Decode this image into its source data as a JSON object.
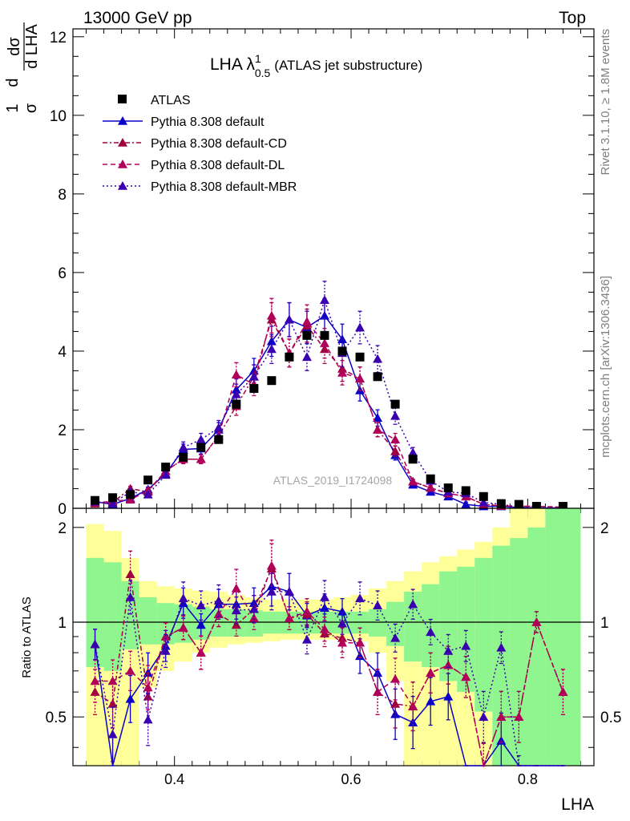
{
  "header": {
    "left": "13000 GeV pp",
    "right": "Top"
  },
  "plot_title": {
    "main": "LHA λ",
    "sup": "1",
    "sub": "0.5",
    "suffix": "(ATLAS jet substructure)"
  },
  "side_labels": {
    "rivet": "Rivet 3.1.10, ≥ 1.8M events",
    "mcplots": "mcplots.cern.ch [arXiv:1306.3436]"
  },
  "analysis_id": "ATLAS_2019_I1724098",
  "y_axis_top_label": {
    "frac_num": "1",
    "frac_den": "σ",
    "d_num": "d",
    "d_den": "d LHA",
    "dsig": "dσ"
  },
  "ratio_ylabel": "Ratio to ATLAS",
  "xlabel": "LHA",
  "legend": [
    {
      "label": "ATLAS",
      "color": "#000000",
      "marker": "square",
      "dash": ""
    },
    {
      "label": "Pythia 8.308 default",
      "color": "#0a00c8",
      "marker": "triangle",
      "dash": ""
    },
    {
      "label": "Pythia 8.308 default-CD",
      "color": "#a00040",
      "marker": "triangle",
      "dash": "6,3,2,3"
    },
    {
      "label": "Pythia 8.308 default-DL",
      "color": "#b0005a",
      "marker": "triangle",
      "dash": "6,4"
    },
    {
      "label": "Pythia 8.308 default-MBR",
      "color": "#3a00b0",
      "marker": "triangle",
      "dash": "2,3"
    }
  ],
  "chart_data": {
    "type": "scatter",
    "x": [
      0.31,
      0.33,
      0.35,
      0.37,
      0.39,
      0.41,
      0.43,
      0.45,
      0.47,
      0.49,
      0.51,
      0.53,
      0.55,
      0.57,
      0.59,
      0.61,
      0.63,
      0.65,
      0.67,
      0.69,
      0.71,
      0.73,
      0.75,
      0.77,
      0.79,
      0.81,
      0.84
    ],
    "bin_edges": [
      0.3,
      0.32,
      0.34,
      0.36,
      0.38,
      0.4,
      0.42,
      0.44,
      0.46,
      0.48,
      0.5,
      0.52,
      0.54,
      0.56,
      0.58,
      0.6,
      0.62,
      0.64,
      0.66,
      0.68,
      0.7,
      0.72,
      0.74,
      0.76,
      0.78,
      0.8,
      0.82,
      0.86
    ],
    "xlim": [
      0.285,
      0.875
    ],
    "xticks": [
      0.4,
      0.6,
      0.8
    ],
    "xtick_labels": [
      "0.4",
      "0.6",
      "0.8"
    ],
    "top_ylim": [
      0,
      12.2
    ],
    "top_yticks": [
      0,
      2,
      4,
      6,
      8,
      10,
      12
    ],
    "top_ytick_labels": [
      "0",
      "2",
      "4",
      "6",
      "8",
      "10",
      "12"
    ],
    "ratio_ylim": [
      0.35,
      2.3
    ],
    "ratio_yticks": [
      0.5,
      1,
      2
    ],
    "ratio_ytick_labels": [
      "0.5",
      "1",
      "2"
    ],
    "series": [
      {
        "name": "ATLAS",
        "values": [
          0.2,
          0.27,
          0.35,
          0.72,
          1.05,
          1.3,
          1.55,
          1.75,
          2.65,
          3.05,
          3.25,
          3.85,
          4.4,
          4.4,
          4.0,
          3.85,
          3.35,
          2.65,
          1.25,
          0.75,
          0.52,
          0.45,
          0.3,
          0.12,
          0.1,
          0.05,
          0.05
        ]
      },
      {
        "name": "Pythia 8.308 default",
        "values": [
          0.17,
          0.1,
          0.25,
          0.48,
          0.88,
          1.5,
          1.52,
          2.0,
          3.02,
          3.5,
          4.25,
          4.8,
          4.6,
          4.9,
          4.3,
          3.0,
          2.3,
          1.35,
          0.6,
          0.42,
          0.3,
          0.1,
          0.05,
          0.05,
          0.02,
          0.01,
          0.01
        ]
      },
      {
        "name": "Pythia 8.308 default-CD",
        "values": [
          0.12,
          0.15,
          0.5,
          0.42,
          0.95,
          1.25,
          1.25,
          1.85,
          2.6,
          3.35,
          4.8,
          3.95,
          4.65,
          4.05,
          3.55,
          3.3,
          2.0,
          1.45,
          0.68,
          0.52,
          0.38,
          0.3,
          0.1,
          0.06,
          0.05,
          0.05,
          0.03
        ]
      },
      {
        "name": "Pythia 8.308 default-DL",
        "values": [
          0.14,
          0.18,
          0.22,
          0.45,
          0.95,
          1.25,
          1.25,
          1.85,
          3.4,
          3.15,
          4.9,
          3.95,
          4.75,
          4.2,
          3.45,
          3.3,
          2.0,
          1.75,
          0.68,
          0.52,
          0.38,
          0.3,
          0.1,
          0.06,
          0.05,
          0.05,
          0.03
        ]
      },
      {
        "name": "Pythia 8.308 default-MBR",
        "values": [
          0.17,
          0.12,
          0.42,
          0.35,
          0.85,
          1.55,
          1.75,
          2.05,
          2.9,
          3.35,
          4.05,
          4.8,
          3.85,
          5.3,
          3.95,
          4.6,
          3.8,
          2.35,
          1.42,
          0.7,
          0.42,
          0.38,
          0.15,
          0.1,
          0.03,
          0.01,
          0.01
        ]
      }
    ],
    "ratio_band": {
      "green_lo": [
        0.72,
        0.7,
        0.82,
        0.85,
        0.85,
        0.86,
        0.88,
        0.9,
        0.9,
        0.9,
        0.92,
        0.92,
        0.92,
        0.92,
        0.92,
        0.92,
        0.9,
        0.84,
        0.75,
        0.72,
        0.65,
        0.6,
        0.52,
        0.3,
        0.2,
        0.1,
        0.1
      ],
      "green_hi": [
        1.6,
        1.55,
        1.35,
        1.2,
        1.15,
        1.14,
        1.12,
        1.1,
        1.1,
        1.09,
        1.08,
        1.08,
        1.08,
        1.08,
        1.08,
        1.08,
        1.1,
        1.16,
        1.25,
        1.32,
        1.45,
        1.5,
        1.6,
        1.75,
        1.85,
        2.0,
        2.3
      ],
      "yellow_lo": [
        0.1,
        0.3,
        0.35,
        0.62,
        0.7,
        0.75,
        0.8,
        0.83,
        0.85,
        0.86,
        0.87,
        0.88,
        0.88,
        0.88,
        0.88,
        0.87,
        0.8,
        0.65,
        0.3,
        0.1,
        0.1,
        0.1,
        0.1,
        0.1,
        0.1,
        0.1,
        0.1
      ],
      "yellow_hi": [
        2.05,
        1.95,
        1.6,
        1.35,
        1.3,
        1.28,
        1.26,
        1.25,
        1.22,
        1.2,
        1.18,
        1.18,
        1.18,
        1.18,
        1.2,
        1.22,
        1.28,
        1.35,
        1.45,
        1.55,
        1.62,
        1.7,
        1.8,
        2.0,
        2.3,
        2.4,
        2.4
      ]
    },
    "ratio_series": [
      {
        "name": "Pythia 8.308 default",
        "values": [
          0.85,
          0.35,
          0.57,
          0.69,
          0.84,
          1.15,
          0.98,
          1.14,
          1.14,
          1.15,
          1.3,
          1.25,
          1.05,
          1.11,
          1.08,
          0.78,
          0.69,
          0.51,
          0.48,
          0.56,
          0.58,
          0.22,
          0.17,
          0.42,
          0.2,
          0.2,
          0.2
        ]
      },
      {
        "name": "Pythia 8.308 default-CD",
        "values": [
          0.6,
          0.55,
          1.42,
          0.58,
          0.9,
          0.96,
          0.8,
          1.06,
          0.98,
          1.1,
          1.48,
          1.03,
          1.06,
          0.92,
          0.89,
          0.86,
          0.6,
          0.55,
          0.54,
          0.69,
          0.73,
          0.67,
          0.33,
          0.5,
          0.5,
          1.0,
          0.6
        ]
      },
      {
        "name": "Pythia 8.308 default-DL",
        "values": [
          0.65,
          0.65,
          0.7,
          0.62,
          0.9,
          0.96,
          0.8,
          1.06,
          1.28,
          1.03,
          1.51,
          1.03,
          1.08,
          0.95,
          0.86,
          0.86,
          0.6,
          0.66,
          0.54,
          0.69,
          0.73,
          0.67,
          0.33,
          0.5,
          0.5,
          1.0,
          0.6
        ]
      },
      {
        "name": "Pythia 8.308 default-MBR",
        "values": [
          0.85,
          0.44,
          1.2,
          0.49,
          0.81,
          1.19,
          1.13,
          1.17,
          1.09,
          1.1,
          1.25,
          1.25,
          0.88,
          1.2,
          0.99,
          1.19,
          1.13,
          0.89,
          1.14,
          0.93,
          0.81,
          0.84,
          0.5,
          0.83,
          0.3,
          0.2,
          0.2
        ]
      }
    ]
  }
}
